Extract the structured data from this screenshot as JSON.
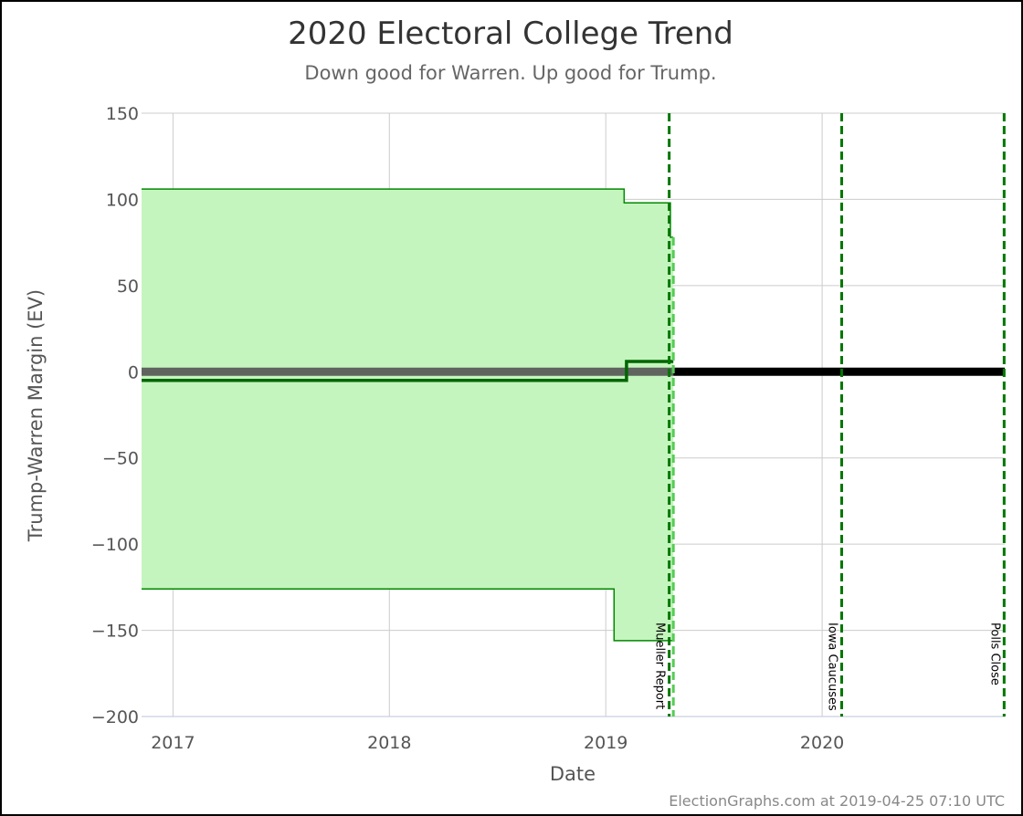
{
  "chart_data": {
    "type": "line",
    "title": "2020 Electoral College Trend",
    "subtitle": "Down good for Warren. Up good for Trump.",
    "xlabel": "Date",
    "ylabel": "Trump-Warren Margin (EV)",
    "credit": "ElectionGraphs.com at 2019-04-25 07:10 UTC",
    "xlim": [
      "2016-11-09",
      "2020-11-04"
    ],
    "ylim": [
      -200,
      150
    ],
    "y_ticks": [
      150,
      100,
      50,
      0,
      -50,
      -100,
      -150,
      -200
    ],
    "y_tick_labels": [
      "150",
      "100",
      "50",
      "0",
      "−50",
      "−100",
      "−150",
      "−200"
    ],
    "x_ticks": [
      {
        "date": "2017-01-01",
        "label": "2017"
      },
      {
        "date": "2018-01-01",
        "label": "2018"
      },
      {
        "date": "2019-01-01",
        "label": "2019"
      },
      {
        "date": "2020-01-01",
        "label": "2020"
      }
    ],
    "grid": true,
    "range_band": {
      "color": "#c5f5be",
      "upper": [
        {
          "date": "2016-11-09",
          "value": 106
        },
        {
          "date": "2019-02-01",
          "value": 106
        },
        {
          "date": "2019-02-01",
          "value": 98
        },
        {
          "date": "2019-04-20",
          "value": 98
        },
        {
          "date": "2019-04-20",
          "value": 78
        },
        {
          "date": "2019-04-25",
          "value": 78
        }
      ],
      "lower": [
        {
          "date": "2016-11-09",
          "value": -126
        },
        {
          "date": "2019-01-15",
          "value": -126
        },
        {
          "date": "2019-01-15",
          "value": -156
        },
        {
          "date": "2019-04-25",
          "value": -156
        }
      ]
    },
    "series": [
      {
        "role": "expected",
        "color": "#006600",
        "points": [
          {
            "date": "2016-11-09",
            "value": -5
          },
          {
            "date": "2019-02-05",
            "value": -5
          },
          {
            "date": "2019-02-05",
            "value": 6
          },
          {
            "date": "2019-04-25",
            "value": 6
          }
        ]
      }
    ],
    "tie_line": {
      "value": 0,
      "past_color": "#555555",
      "future_color": "#000000",
      "split_date": "2019-04-25"
    },
    "events": [
      {
        "date": "2019-04-18",
        "label": "Mueller Report",
        "color": "#007700"
      },
      {
        "date": "2020-02-03",
        "label": "Iowa Caucuses",
        "color": "#007700"
      },
      {
        "date": "2020-11-03",
        "label": "Polls Close",
        "color": "#007700"
      }
    ],
    "colors": {
      "band_fill": "#c5f5be",
      "band_edge": "#008800",
      "expected": "#006600",
      "grid": "#cccccc",
      "event": "#007700",
      "today_marker": "#55cc55"
    }
  }
}
